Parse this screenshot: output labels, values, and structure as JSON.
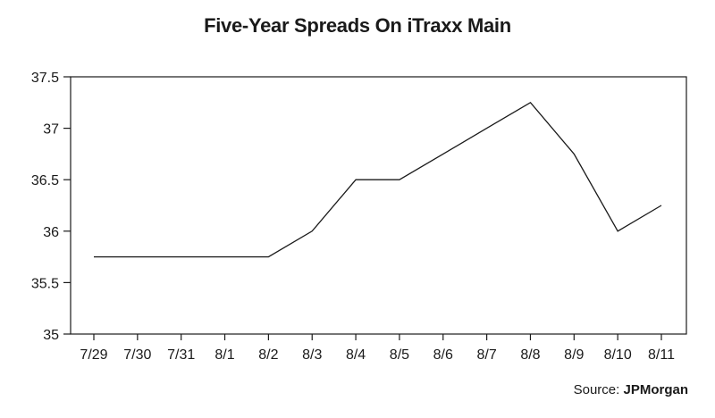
{
  "chart_data": {
    "type": "line",
    "title": "Five-Year Spreads On iTraxx Main",
    "xlabel": "",
    "ylabel": "",
    "categories": [
      "7/29",
      "7/30",
      "7/31",
      "8/1",
      "8/2",
      "8/3",
      "8/4",
      "8/5",
      "8/6",
      "8/7",
      "8/8",
      "8/9",
      "8/10",
      "8/11"
    ],
    "series": [
      {
        "values": [
          35.75,
          35.75,
          35.75,
          35.75,
          35.75,
          36.0,
          36.5,
          36.5,
          36.75,
          37.0,
          37.25,
          36.75,
          36.0,
          36.25
        ]
      }
    ],
    "ylim": [
      35,
      37.5
    ],
    "yticks": [
      "35",
      "35.5",
      "36",
      "36.5",
      "37",
      "37.5"
    ],
    "grid": false,
    "line_color": "#1a1a1a"
  },
  "source": {
    "label": "Source:",
    "name": "JPMorgan"
  }
}
